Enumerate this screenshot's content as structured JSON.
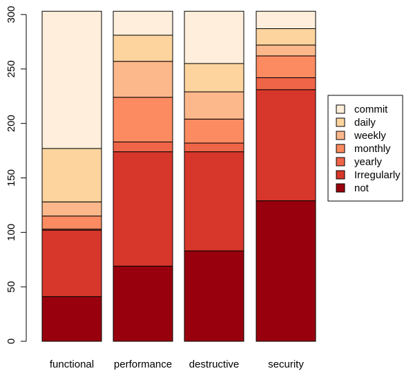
{
  "chart_data": {
    "type": "bar",
    "stacked": true,
    "categories": [
      "functional",
      "performance",
      "destructive",
      "security"
    ],
    "series": [
      {
        "name": "not",
        "color": "#99000d",
        "values": [
          41,
          69,
          83,
          129
        ]
      },
      {
        "name": "Irregularly",
        "color": "#d7372b",
        "values": [
          61,
          105,
          91,
          102
        ]
      },
      {
        "name": "yearly",
        "color": "#ef6547",
        "values": [
          1,
          9,
          8,
          11
        ]
      },
      {
        "name": "monthly",
        "color": "#fc8b61",
        "values": [
          12,
          41,
          22,
          20
        ]
      },
      {
        "name": "weekly",
        "color": "#fcb88b",
        "values": [
          13,
          33,
          25,
          10
        ]
      },
      {
        "name": "daily",
        "color": "#fdd49e",
        "values": [
          49,
          24,
          26,
          15
        ]
      },
      {
        "name": "commit",
        "color": "#feeedb",
        "values": [
          126,
          22,
          48,
          16
        ]
      }
    ],
    "ylim": [
      0,
      300
    ],
    "yticks": [
      "0",
      "50",
      "100",
      "150",
      "200",
      "250",
      "300"
    ],
    "legend_position": "right",
    "xlabel": "",
    "ylabel": ""
  }
}
